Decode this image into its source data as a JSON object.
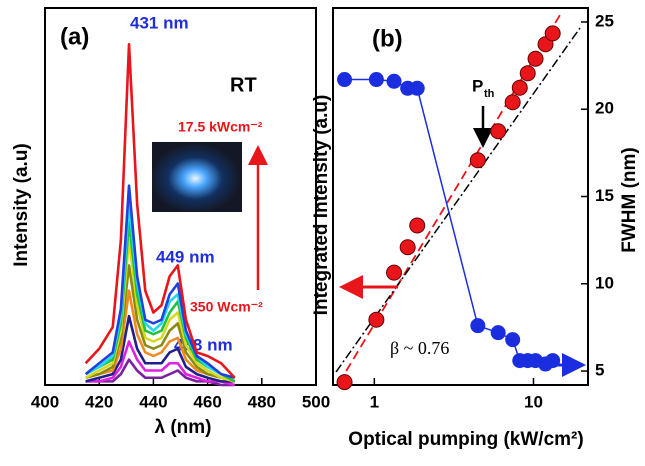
{
  "chart_data": [
    {
      "type": "line",
      "panel_label": "(a)",
      "xlabel": "λ (nm)",
      "ylabel": "Intensity (a.u)",
      "annotations": [
        "431 nm",
        "449 nm",
        "468 nm",
        "RT",
        "17.5 kWcm⁻²",
        "350 Wcm⁻²"
      ],
      "x": [
        415,
        420,
        425,
        428,
        431,
        434,
        437,
        440,
        443,
        446,
        449,
        452,
        456,
        460,
        465,
        470
      ],
      "xlim": [
        400,
        500
      ],
      "xticks": [
        400,
        420,
        440,
        460,
        480,
        500
      ],
      "ylim": [
        0,
        104
      ],
      "series": [
        {
          "color": "#7a1fa0",
          "values": [
            1,
            1,
            1,
            3,
            7,
            4,
            2,
            2,
            2,
            3,
            4,
            2,
            1,
            1,
            0,
            0
          ]
        },
        {
          "color": "#e020e0",
          "values": [
            1,
            1,
            2,
            5,
            12,
            7,
            4,
            4,
            4,
            6,
            6,
            3,
            2,
            1,
            1,
            0
          ]
        },
        {
          "color": "#20208a",
          "values": [
            1,
            2,
            3,
            7,
            19,
            10,
            6,
            6,
            6,
            9,
            10,
            5,
            3,
            2,
            1,
            1
          ]
        },
        {
          "color": "#f08a20",
          "values": [
            2,
            3,
            4,
            10,
            26,
            14,
            9,
            8,
            9,
            12,
            13,
            7,
            4,
            3,
            2,
            1
          ]
        },
        {
          "color": "#8a8a10",
          "values": [
            2,
            3,
            5,
            13,
            33,
            18,
            11,
            10,
            11,
            15,
            17,
            9,
            5,
            3,
            2,
            1
          ]
        },
        {
          "color": "#d8d820",
          "values": [
            2,
            4,
            6,
            15,
            40,
            22,
            13,
            12,
            13,
            18,
            20,
            11,
            6,
            4,
            2,
            1
          ]
        },
        {
          "color": "#20c040",
          "values": [
            3,
            5,
            7,
            17,
            45,
            25,
            15,
            14,
            15,
            20,
            23,
            13,
            7,
            5,
            3,
            1
          ]
        },
        {
          "color": "#20d8e8",
          "values": [
            3,
            5,
            8,
            19,
            50,
            28,
            17,
            15,
            17,
            23,
            25,
            14,
            8,
            5,
            3,
            2
          ]
        },
        {
          "color": "#2040e0",
          "values": [
            3,
            6,
            9,
            21,
            55,
            30,
            18,
            17,
            18,
            25,
            28,
            15,
            8,
            6,
            3,
            2
          ]
        },
        {
          "color": "#e8151b",
          "values": [
            6,
            10,
            16,
            40,
            94,
            50,
            26,
            20,
            22,
            30,
            33,
            18,
            9,
            8,
            6,
            2
          ]
        }
      ]
    },
    {
      "type": "scatter",
      "panel_label": "(b)",
      "xlabel": "Optical pumping (kW/cm²)",
      "ylabel": "Integrated Intensity (a.u)",
      "y2label": "FWHM (nm)",
      "annotations": [
        "P",
        "th",
        "β ~ 0.76"
      ],
      "log_x": true,
      "x": [
        0.65,
        1.03,
        1.33,
        1.62,
        1.86,
        4.47,
        6.0,
        7.4,
        8.2,
        9.2,
        10.3,
        11.9,
        13.2
      ],
      "xlim": [
        0.55,
        22
      ],
      "xticks": [
        1,
        10
      ],
      "ylim": [
        0,
        104
      ],
      "y2lim": [
        4.2,
        25.8
      ],
      "y2ticks": [
        5,
        10,
        15,
        20,
        25
      ],
      "series": [
        {
          "color": "#e8151b",
          "values": [
            0.8,
            18,
            31,
            38,
            44,
            62,
            70,
            78,
            82,
            86,
            90,
            94,
            97
          ]
        },
        {
          "color": "#1a2ee0",
          "axis": "y2",
          "connect": true,
          "values": [
            21.7,
            21.7,
            21.6,
            21.2,
            21.2,
            7.6,
            7.2,
            6.8,
            5.6,
            5.6,
            5.6,
            5.4,
            5.6
          ]
        }
      ]
    }
  ]
}
